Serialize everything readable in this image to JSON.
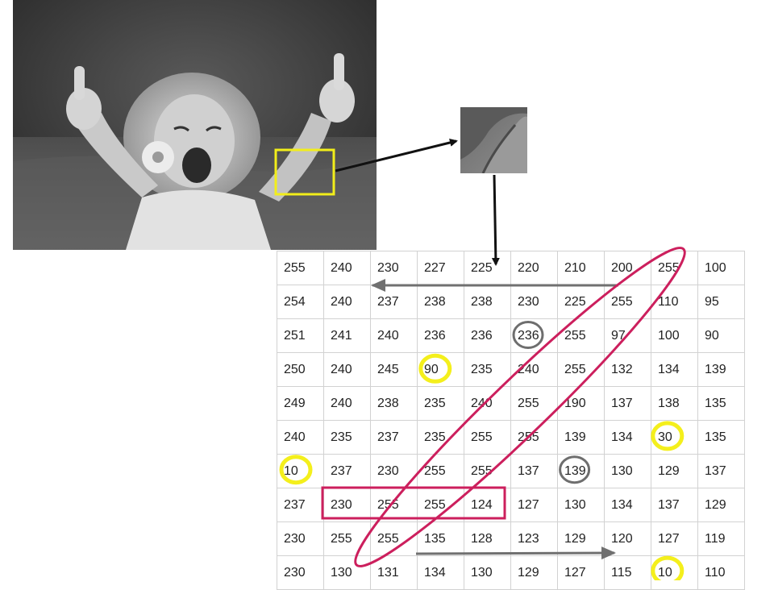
{
  "grid": {
    "rows": [
      [
        255,
        240,
        230,
        227,
        225,
        220,
        210,
        200,
        255,
        100
      ],
      [
        254,
        240,
        237,
        238,
        238,
        230,
        225,
        255,
        110,
        95
      ],
      [
        251,
        241,
        240,
        236,
        236,
        236,
        255,
        97,
        100,
        90
      ],
      [
        250,
        240,
        245,
        90,
        235,
        240,
        255,
        132,
        134,
        139
      ],
      [
        249,
        240,
        238,
        235,
        240,
        255,
        190,
        137,
        138,
        135
      ],
      [
        240,
        235,
        237,
        235,
        255,
        255,
        139,
        134,
        30,
        135
      ],
      [
        10,
        237,
        230,
        255,
        255,
        137,
        139,
        130,
        129,
        137
      ],
      [
        237,
        230,
        255,
        255,
        124,
        127,
        130,
        134,
        137,
        129
      ],
      [
        230,
        255,
        255,
        135,
        128,
        123,
        129,
        120,
        127,
        119
      ],
      [
        230,
        130,
        131,
        134,
        130,
        129,
        127,
        115,
        10,
        110
      ]
    ],
    "yellow_circles": [
      [
        3,
        3
      ],
      [
        5,
        8
      ],
      [
        6,
        0
      ],
      [
        9,
        8
      ]
    ],
    "gray_circles": [
      [
        2,
        5
      ],
      [
        6,
        6
      ]
    ],
    "highlight_rect": {
      "row": 7,
      "col_start": 1,
      "col_end": 4
    }
  },
  "colors": {
    "selection_box": "#f2ee1a",
    "yellow_circle": "#f4ef1c",
    "gray_circle": "#6e6e6e",
    "diagonal_ellipse": "#cc1f5d",
    "row_rect": "#cc1f5d",
    "scan_arrow": "#707070",
    "flow_arrow": "#111111"
  }
}
